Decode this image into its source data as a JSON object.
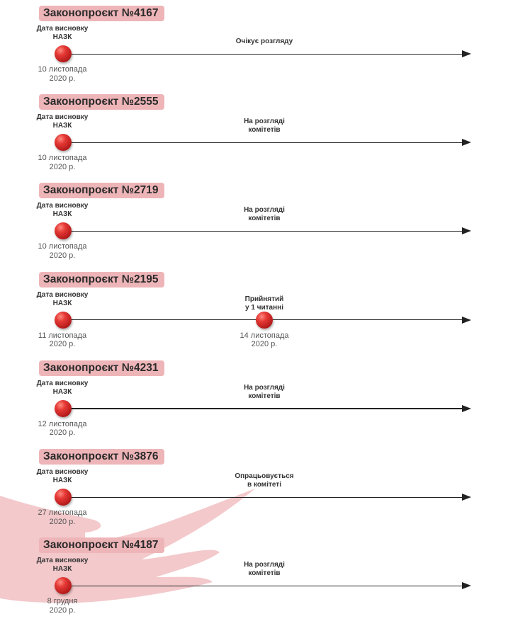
{
  "common": {
    "nazk_label_line1": "Дата висновку",
    "nazk_label_line2": "НАЗК",
    "year": "2020 р."
  },
  "bills": [
    {
      "title": "Законопроєкт №4167",
      "nazk_date": "10 листопада",
      "status": [
        "Очікує розгляду"
      ]
    },
    {
      "title": "Законопроєкт №2555",
      "nazk_date": "10 листопада",
      "status": [
        "На розгляді",
        "комітетів"
      ]
    },
    {
      "title": "Законопроєкт №2719",
      "nazk_date": "10 листопада",
      "status": [
        "На розгляді",
        "комітетів"
      ]
    },
    {
      "title": "Законопроєкт №2195",
      "nazk_date": "11 листопада",
      "status": [
        "Прийнятий",
        "у 1 читанні"
      ],
      "status_date": "14 листопада"
    },
    {
      "title": "Законопроєкт №4231",
      "nazk_date": "12 листопада",
      "status": [
        "На розгляді",
        "комітетів"
      ]
    },
    {
      "title": "Законопроєкт №3876",
      "nazk_date": "27 листопада",
      "status": [
        "Опрацьовується",
        "в комітеті"
      ]
    },
    {
      "title": "Законопроєкт №4187",
      "nazk_date": "8 грудня",
      "status": [
        "На розгляді",
        "комітетів"
      ]
    }
  ]
}
